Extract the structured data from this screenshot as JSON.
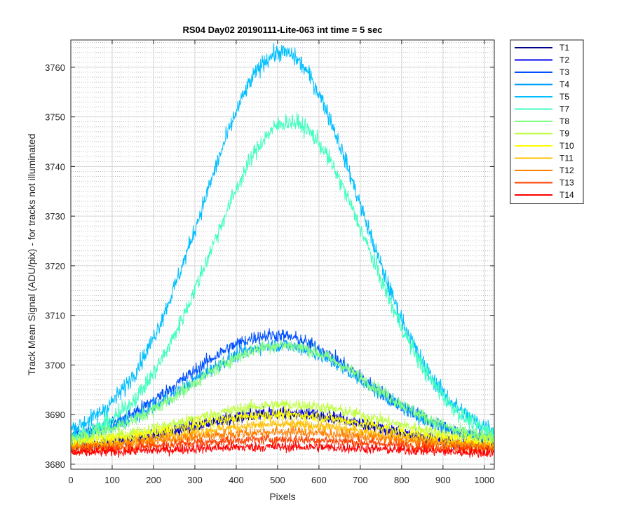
{
  "chart_data": {
    "type": "line",
    "title": "RS04 Day02 20190111-Lite-063 int time = 5 sec",
    "xlabel": "Pixels",
    "ylabel": "Track Mean Signal (ADU/pix) - for tracks not illuminated",
    "xlim": [
      0,
      1024
    ],
    "ylim": [
      3679,
      3765.5
    ],
    "xticks": [
      0,
      100,
      200,
      300,
      400,
      500,
      600,
      700,
      800,
      900,
      1000
    ],
    "yticks": [
      3680,
      3690,
      3700,
      3710,
      3720,
      3730,
      3740,
      3750,
      3760
    ],
    "grid": "on (major solid, minor dotted on y)",
    "legend_position": "outside-top-right",
    "series": [
      {
        "name": "T1",
        "color": "#00008f",
        "base": 3683,
        "peak": 3690,
        "peak_x": 512,
        "width": 230,
        "noise": 1.0
      },
      {
        "name": "T2",
        "color": "#0000ef",
        "base": 3683,
        "peak": 3690.5,
        "peak_x": 512,
        "width": 230,
        "noise": 1.2
      },
      {
        "name": "T3",
        "color": "#0050ff",
        "base": 3684,
        "peak": 3706,
        "peak_x": 490,
        "width": 215,
        "noise": 1.4
      },
      {
        "name": "T4",
        "color": "#00a0ff",
        "base": 3684,
        "peak": 3704,
        "peak_x": 500,
        "width": 215,
        "noise": 1.4
      },
      {
        "name": "T5",
        "color": "#00bfff",
        "base": 3685,
        "peak": 3763,
        "peak_x": 510,
        "width": 190,
        "noise": 1.8
      },
      {
        "name": "T7",
        "color": "#40ffbf",
        "base": 3684,
        "peak": 3749,
        "peak_x": 530,
        "width": 190,
        "noise": 1.8
      },
      {
        "name": "T8",
        "color": "#80ff80",
        "base": 3684,
        "peak": 3704,
        "peak_x": 510,
        "width": 215,
        "noise": 1.4
      },
      {
        "name": "T9",
        "color": "#bfff40",
        "base": 3684,
        "peak": 3692,
        "peak_x": 520,
        "width": 235,
        "noise": 1.2
      },
      {
        "name": "T10",
        "color": "#ffff00",
        "base": 3683.5,
        "peak": 3690,
        "peak_x": 510,
        "width": 240,
        "noise": 1.2
      },
      {
        "name": "T11",
        "color": "#ffbf00",
        "base": 3683,
        "peak": 3688,
        "peak_x": 510,
        "width": 240,
        "noise": 1.1
      },
      {
        "name": "T12",
        "color": "#ff8000",
        "base": 3683,
        "peak": 3686.5,
        "peak_x": 510,
        "width": 250,
        "noise": 1.1
      },
      {
        "name": "T13",
        "color": "#ff4000",
        "base": 3682.5,
        "peak": 3685,
        "peak_x": 510,
        "width": 260,
        "noise": 1.0
      },
      {
        "name": "T14",
        "color": "#ff0000",
        "base": 3682,
        "peak": 3683.5,
        "peak_x": 510,
        "width": 280,
        "noise": 1.0
      }
    ]
  }
}
